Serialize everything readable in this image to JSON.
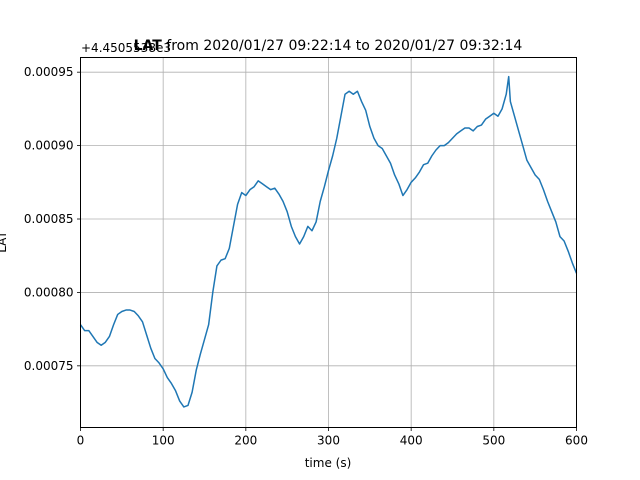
{
  "chart_data": {
    "type": "line",
    "title_bold": "LAT",
    "title_rest": " from 2020/01/27 09:22:14 to 2020/01/27 09:32:14",
    "offset_text": "+4.4505538e3",
    "xlabel": "time (s)",
    "ylabel": "LAT",
    "xlim": [
      0,
      600
    ],
    "ylim": [
      0.000708,
      0.00096
    ],
    "xticks": [
      0,
      100,
      200,
      300,
      400,
      500,
      600
    ],
    "xtick_labels": [
      "0",
      "100",
      "200",
      "300",
      "400",
      "500",
      "600"
    ],
    "yticks": [
      0.00075,
      0.0008,
      0.00085,
      0.0009,
      0.00095
    ],
    "ytick_labels": [
      "0.00075",
      "0.00080",
      "0.00085",
      "0.00090",
      "0.00095"
    ],
    "grid": true,
    "line_color": "#1f77b4",
    "series": [
      {
        "x": [
          0,
          5,
          10,
          15,
          20,
          25,
          30,
          35,
          40,
          45,
          50,
          55,
          60,
          65,
          70,
          75,
          80,
          85,
          90,
          95,
          100,
          105,
          110,
          115,
          120,
          125,
          130,
          135,
          140,
          145,
          150,
          155,
          160,
          165,
          170,
          175,
          180,
          185,
          190,
          195,
          200,
          205,
          210,
          215,
          220,
          225,
          230,
          235,
          240,
          245,
          250,
          255,
          260,
          265,
          270,
          275,
          280,
          285,
          290,
          295,
          300,
          305,
          310,
          315,
          320,
          325,
          330,
          335,
          340,
          345,
          350,
          355,
          360,
          365,
          370,
          375,
          380,
          385,
          390,
          395,
          400,
          405,
          410,
          415,
          420,
          425,
          430,
          435,
          440,
          445,
          450,
          455,
          460,
          465,
          470,
          475,
          480,
          485,
          490,
          495,
          500,
          505,
          510,
          515,
          518,
          520,
          525,
          530,
          535,
          540,
          545,
          550,
          555,
          560,
          565,
          570,
          575,
          580,
          585,
          590,
          595,
          600
        ],
        "y": [
          0.000778,
          0.000774,
          0.000774,
          0.00077,
          0.000766,
          0.000764,
          0.000766,
          0.00077,
          0.000778,
          0.000785,
          0.000787,
          0.000788,
          0.000788,
          0.000787,
          0.000784,
          0.00078,
          0.000771,
          0.000762,
          0.000755,
          0.000752,
          0.000748,
          0.000742,
          0.000738,
          0.000733,
          0.000726,
          0.000722,
          0.000723,
          0.000732,
          0.000747,
          0.000758,
          0.000768,
          0.000778,
          0.0008,
          0.000818,
          0.000822,
          0.000823,
          0.00083,
          0.000845,
          0.00086,
          0.000868,
          0.000866,
          0.00087,
          0.000872,
          0.000876,
          0.000874,
          0.000872,
          0.00087,
          0.000871,
          0.000867,
          0.000862,
          0.000855,
          0.000845,
          0.000838,
          0.000833,
          0.000838,
          0.000845,
          0.000842,
          0.000848,
          0.000862,
          0.000872,
          0.000883,
          0.000893,
          0.000905,
          0.00092,
          0.000935,
          0.000937,
          0.000935,
          0.000937,
          0.00093,
          0.000924,
          0.000913,
          0.000905,
          0.0009,
          0.000898,
          0.000893,
          0.000888,
          0.00088,
          0.000874,
          0.000866,
          0.00087,
          0.000875,
          0.000878,
          0.000882,
          0.000887,
          0.000888,
          0.000893,
          0.000897,
          0.0009,
          0.0009,
          0.000902,
          0.000905,
          0.000908,
          0.00091,
          0.000912,
          0.000912,
          0.00091,
          0.000913,
          0.000914,
          0.000918,
          0.00092,
          0.000922,
          0.00092,
          0.000925,
          0.000935,
          0.000947,
          0.00093,
          0.00092,
          0.00091,
          0.0009,
          0.00089,
          0.000885,
          0.00088,
          0.000877,
          0.00087,
          0.000862,
          0.000855,
          0.000848,
          0.000838,
          0.000835,
          0.000828,
          0.00082,
          0.000813
        ]
      }
    ]
  }
}
